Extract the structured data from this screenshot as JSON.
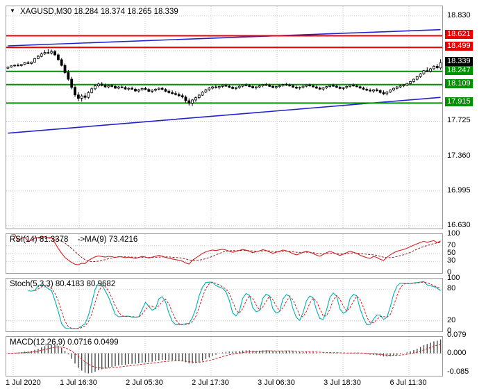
{
  "icons": {
    "symbol_dropdown": "▼"
  },
  "main_chart": {
    "header": {
      "symbol": "XAGUSD,M30",
      "ohlc": "18.284 18.374 18.265 18.339"
    }
  },
  "panels": {
    "rsi": {
      "label": "RSI(14)",
      "value": "81.3378",
      "ma_label": "->MA(9)",
      "ma_value": "73.4216"
    },
    "stoch": {
      "label": "Stoch(5,3,3)",
      "value_k": "80.4183",
      "value_d": "80.9682"
    },
    "macd": {
      "label": "MACD(12,26,9)",
      "value_main": "0.0716",
      "value_signal": "0.0499"
    }
  },
  "time_axis": {
    "labels": [
      "1 Jul 2020",
      "1 Jul 16:30",
      "2 Jul 05:30",
      "2 Jul 17:30",
      "3 Jul 06:30",
      "3 Jul 18:30",
      "6 Jul 11:30"
    ]
  },
  "chart_data": [
    {
      "type": "candlestick",
      "symbol": "XAGUSD",
      "timeframe": "M30",
      "current_bar": {
        "open": 18.284,
        "high": 18.374,
        "low": 18.265,
        "close": 18.339
      },
      "ylim": [
        16.6,
        18.93
      ],
      "y_ticks_plain": [
        18.83,
        17.725,
        17.36,
        16.995,
        16.63
      ],
      "h_gridlines": [
        18.83,
        18.465,
        18.1,
        17.725,
        17.36,
        16.995,
        16.63
      ],
      "price_badges": [
        {
          "value": "18.621",
          "color": "#e60000",
          "kind": "resistance"
        },
        {
          "value": "18.499",
          "color": "#e60000",
          "kind": "resistance"
        },
        {
          "value": "18.339",
          "color": "#000000",
          "kind": "current-price"
        },
        {
          "value": "18.247",
          "color": "#009000",
          "kind": "support"
        },
        {
          "value": "18.109",
          "color": "#009000",
          "kind": "support"
        },
        {
          "value": "17.915",
          "color": "#009000",
          "kind": "support"
        }
      ],
      "levels": [
        {
          "value": 18.621,
          "color": "#e60000"
        },
        {
          "value": 18.499,
          "color": "#e60000"
        },
        {
          "value": 18.247,
          "color": "#009000"
        },
        {
          "value": 18.109,
          "color": "#009000"
        },
        {
          "value": 17.915,
          "color": "#009000"
        }
      ],
      "trendlines": [
        {
          "from": [
            0,
            18.515
          ],
          "to": [
            129,
            18.685
          ],
          "color": "#2222cc"
        },
        {
          "from": [
            0,
            17.6
          ],
          "to": [
            129,
            17.975
          ],
          "color": "#2222cc"
        }
      ],
      "candles": [
        [
          18.28,
          18.3,
          18.27,
          18.292
        ],
        [
          18.292,
          18.31,
          18.285,
          18.305
        ],
        [
          18.305,
          18.32,
          18.295,
          18.312
        ],
        [
          18.312,
          18.33,
          18.3,
          18.308
        ],
        [
          18.308,
          18.325,
          18.298,
          18.32
        ],
        [
          18.32,
          18.345,
          18.312,
          18.338
        ],
        [
          18.338,
          18.355,
          18.325,
          18.33
        ],
        [
          18.33,
          18.35,
          18.32,
          18.345
        ],
        [
          18.345,
          18.39,
          18.34,
          18.382
        ],
        [
          18.382,
          18.42,
          18.375,
          18.405
        ],
        [
          18.405,
          18.445,
          18.395,
          18.43
        ],
        [
          18.43,
          18.47,
          18.42,
          18.445
        ],
        [
          18.445,
          18.48,
          18.43,
          18.44
        ],
        [
          18.44,
          18.475,
          18.425,
          18.455
        ],
        [
          18.455,
          18.47,
          18.41,
          18.42
        ],
        [
          18.42,
          18.435,
          18.36,
          18.37
        ],
        [
          18.37,
          18.385,
          18.3,
          18.31
        ],
        [
          18.31,
          18.33,
          18.22,
          18.235
        ],
        [
          18.235,
          18.26,
          18.15,
          18.165
        ],
        [
          18.165,
          18.19,
          18.06,
          18.08
        ],
        [
          18.08,
          18.1,
          17.98,
          18.0
        ],
        [
          18.0,
          18.03,
          17.935,
          17.965
        ],
        [
          17.965,
          18.01,
          17.93,
          17.99
        ],
        [
          17.99,
          18.02,
          17.95,
          17.975
        ],
        [
          17.975,
          18.04,
          17.96,
          18.025
        ],
        [
          18.025,
          18.08,
          18.015,
          18.065
        ],
        [
          18.065,
          18.11,
          18.05,
          18.095
        ],
        [
          18.095,
          18.13,
          18.08,
          18.115
        ],
        [
          18.115,
          18.135,
          18.09,
          18.1
        ],
        [
          18.1,
          18.12,
          18.075,
          18.085
        ],
        [
          18.085,
          18.11,
          18.07,
          18.098
        ],
        [
          18.098,
          18.115,
          18.08,
          18.09
        ],
        [
          18.09,
          18.105,
          18.065,
          18.072
        ],
        [
          18.072,
          18.095,
          18.06,
          18.085
        ],
        [
          18.085,
          18.1,
          18.07,
          18.078
        ],
        [
          18.078,
          18.092,
          18.055,
          18.062
        ],
        [
          18.062,
          18.08,
          18.045,
          18.07
        ],
        [
          18.07,
          18.088,
          18.055,
          18.06
        ],
        [
          18.06,
          18.075,
          18.035,
          18.042
        ],
        [
          18.042,
          18.065,
          18.025,
          18.055
        ],
        [
          18.055,
          18.078,
          18.045,
          18.068
        ],
        [
          18.068,
          18.085,
          18.05,
          18.058
        ],
        [
          18.058,
          18.072,
          18.03,
          18.038
        ],
        [
          18.038,
          18.06,
          18.02,
          18.05
        ],
        [
          18.05,
          18.07,
          18.035,
          18.06
        ],
        [
          18.06,
          18.08,
          18.048,
          18.07
        ],
        [
          18.07,
          18.085,
          18.05,
          18.058
        ],
        [
          18.058,
          18.07,
          18.03,
          18.04
        ],
        [
          18.04,
          18.058,
          18.015,
          18.025
        ],
        [
          18.025,
          18.048,
          18.005,
          18.015
        ],
        [
          18.015,
          18.04,
          17.995,
          18.005
        ],
        [
          18.005,
          18.025,
          17.98,
          17.992
        ],
        [
          17.992,
          18.015,
          17.965,
          17.978
        ],
        [
          17.978,
          17.995,
          17.92,
          17.94
        ],
        [
          17.94,
          17.965,
          17.89,
          17.915
        ],
        [
          17.915,
          17.958,
          17.885,
          17.948
        ],
        [
          17.948,
          17.985,
          17.93,
          17.972
        ],
        [
          17.972,
          18.01,
          17.955,
          17.998
        ],
        [
          17.998,
          18.04,
          17.99,
          18.03
        ],
        [
          18.03,
          18.065,
          18.02,
          18.055
        ],
        [
          18.055,
          18.085,
          18.04,
          18.072
        ],
        [
          18.072,
          18.095,
          18.058,
          18.085
        ],
        [
          18.085,
          18.105,
          18.068,
          18.078
        ],
        [
          18.078,
          18.098,
          18.06,
          18.09
        ],
        [
          18.09,
          18.11,
          18.075,
          18.1
        ],
        [
          18.1,
          18.118,
          18.085,
          18.092
        ],
        [
          18.092,
          18.108,
          18.072,
          18.08
        ],
        [
          18.08,
          18.095,
          18.06,
          18.068
        ],
        [
          18.068,
          18.088,
          18.052,
          18.078
        ],
        [
          18.078,
          18.1,
          18.065,
          18.092
        ],
        [
          18.092,
          18.112,
          18.08,
          18.105
        ],
        [
          18.105,
          18.122,
          18.09,
          18.098
        ],
        [
          18.098,
          18.115,
          18.082,
          18.088
        ],
        [
          18.088,
          18.102,
          18.068,
          18.075
        ],
        [
          18.075,
          18.092,
          18.058,
          18.085
        ],
        [
          18.085,
          18.105,
          18.072,
          18.095
        ],
        [
          18.095,
          18.115,
          18.082,
          18.108
        ],
        [
          18.108,
          18.125,
          18.095,
          18.102
        ],
        [
          18.102,
          18.118,
          18.085,
          18.09
        ],
        [
          18.09,
          18.105,
          18.07,
          18.078
        ],
        [
          18.078,
          18.095,
          18.062,
          18.088
        ],
        [
          18.088,
          18.108,
          18.075,
          18.098
        ],
        [
          18.098,
          18.118,
          18.085,
          18.11
        ],
        [
          18.11,
          18.128,
          18.095,
          18.105
        ],
        [
          18.105,
          18.12,
          18.088,
          18.095
        ],
        [
          18.095,
          18.11,
          18.075,
          18.082
        ],
        [
          18.082,
          18.098,
          18.062,
          18.072
        ],
        [
          18.072,
          18.09,
          18.055,
          18.08
        ],
        [
          18.08,
          18.1,
          18.068,
          18.092
        ],
        [
          18.092,
          18.112,
          18.08,
          18.102
        ],
        [
          18.102,
          18.12,
          18.088,
          18.095
        ],
        [
          18.095,
          18.11,
          18.078,
          18.085
        ],
        [
          18.085,
          18.1,
          18.065,
          18.072
        ],
        [
          18.072,
          18.088,
          18.052,
          18.062
        ],
        [
          18.062,
          18.082,
          18.045,
          18.075
        ],
        [
          18.075,
          18.095,
          18.062,
          18.088
        ],
        [
          18.088,
          18.108,
          18.075,
          18.1
        ],
        [
          18.1,
          18.118,
          18.085,
          18.092
        ],
        [
          18.092,
          18.108,
          18.072,
          18.08
        ],
        [
          18.08,
          18.096,
          18.06,
          18.068
        ],
        [
          18.068,
          18.085,
          18.05,
          18.078
        ],
        [
          18.078,
          18.098,
          18.065,
          18.09
        ],
        [
          18.09,
          18.11,
          18.078,
          18.102
        ],
        [
          18.102,
          18.12,
          18.088,
          18.095
        ],
        [
          18.095,
          18.112,
          18.08,
          18.086
        ],
        [
          18.086,
          18.1,
          18.065,
          18.072
        ],
        [
          18.072,
          18.088,
          18.052,
          18.06
        ],
        [
          18.06,
          18.078,
          18.04,
          18.05
        ],
        [
          18.05,
          18.068,
          18.03,
          18.042
        ],
        [
          18.042,
          18.062,
          18.022,
          18.055
        ],
        [
          18.055,
          18.072,
          18.035,
          18.045
        ],
        [
          18.045,
          18.06,
          18.015,
          18.025
        ],
        [
          18.025,
          18.048,
          18.0,
          18.012
        ],
        [
          18.012,
          18.04,
          17.995,
          18.032
        ],
        [
          18.032,
          18.06,
          18.02,
          18.052
        ],
        [
          18.052,
          18.078,
          18.04,
          18.07
        ],
        [
          18.07,
          18.092,
          18.058,
          18.085
        ],
        [
          18.085,
          18.105,
          18.072,
          18.095
        ],
        [
          18.095,
          18.115,
          18.082,
          18.105
        ],
        [
          18.105,
          18.128,
          18.092,
          18.12
        ],
        [
          18.12,
          18.148,
          18.108,
          18.14
        ],
        [
          18.14,
          18.172,
          18.128,
          18.165
        ],
        [
          18.165,
          18.2,
          18.152,
          18.192
        ],
        [
          18.192,
          18.23,
          18.18,
          18.222
        ],
        [
          18.222,
          18.262,
          18.21,
          18.255
        ],
        [
          18.255,
          18.29,
          18.24,
          18.248
        ],
        [
          18.248,
          18.285,
          18.235,
          18.275
        ],
        [
          18.275,
          18.312,
          18.262,
          18.3
        ],
        [
          18.3,
          18.325,
          18.27,
          18.285
        ],
        [
          18.284,
          18.374,
          18.265,
          18.339
        ]
      ]
    },
    {
      "type": "line",
      "name": "RSI",
      "period": 14,
      "ma_period": 9,
      "displayed": {
        "value": 81.3378,
        "ma": 73.4216
      },
      "ylim": [
        0,
        100
      ],
      "y_ticks": [
        100,
        70,
        50,
        30,
        0
      ],
      "levels": [
        70,
        50,
        30
      ],
      "colors": {
        "line": "#d02020",
        "ma": "#8b2020"
      }
    },
    {
      "type": "line",
      "name": "Stochastic",
      "params": [
        5,
        3,
        3
      ],
      "displayed": {
        "k": 80.4183,
        "d": 80.9682
      },
      "ylim": [
        0,
        100
      ],
      "y_ticks": [
        100,
        80,
        20,
        0
      ],
      "levels": [
        80,
        20
      ],
      "colors": {
        "k": "#00b0b0",
        "d": "#d02020"
      }
    },
    {
      "type": "bar",
      "name": "MACD",
      "params": [
        12,
        26,
        9
      ],
      "displayed": {
        "macd": 0.0716,
        "signal": 0.0499
      },
      "y_ticks": [
        0.079,
        0.0,
        -0.085
      ],
      "colors": {
        "hist": "#4a4a4a",
        "signal": "#d02020"
      }
    }
  ]
}
